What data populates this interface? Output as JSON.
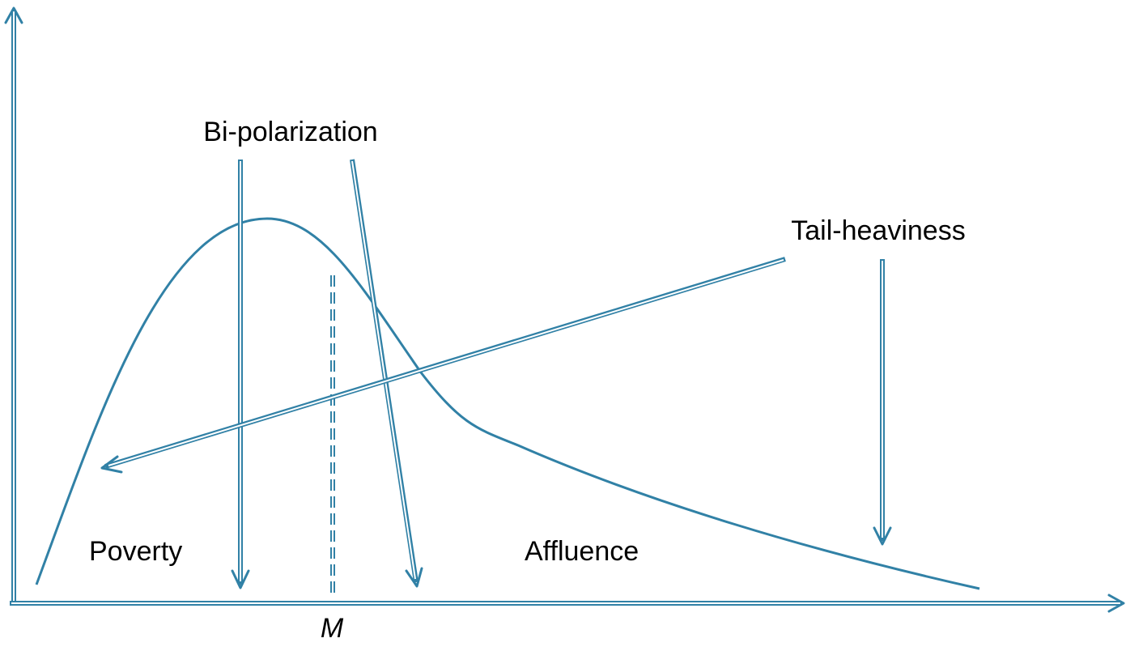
{
  "labels": {
    "bipolarization": "Bi-polarization",
    "tail_heaviness": "Tail-heaviness",
    "poverty": "Poverty",
    "affluence": "Affluence",
    "median": "M"
  }
}
